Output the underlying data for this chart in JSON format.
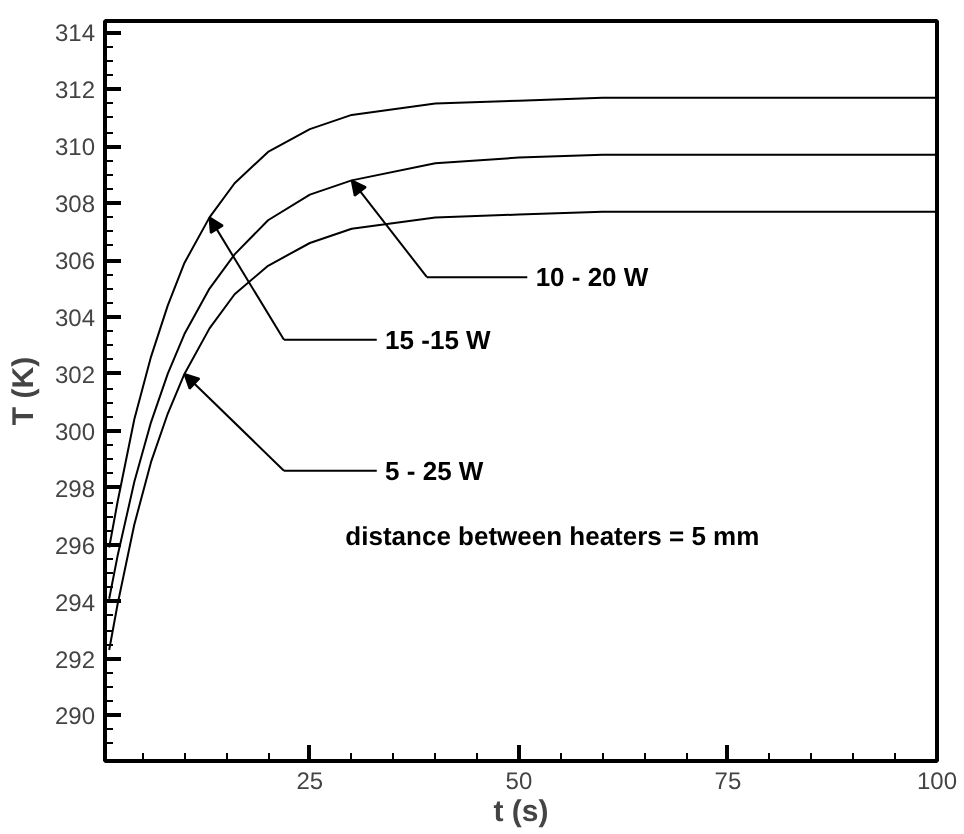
{
  "chart_data": {
    "type": "line",
    "xlabel": "t (s)",
    "ylabel": "T (K)",
    "x": [
      1,
      2,
      4,
      6,
      8,
      10,
      13,
      16,
      20,
      25,
      30,
      40,
      50,
      60,
      75,
      100
    ],
    "series": [
      {
        "name": "15 -15 W",
        "color": "#000000",
        "values": [
          295.9,
          297.5,
          300.4,
          302.6,
          304.4,
          305.9,
          307.5,
          308.7,
          309.8,
          310.6,
          311.1,
          311.5,
          311.6,
          311.7,
          311.7,
          311.7
        ]
      },
      {
        "name": "10 - 20 W",
        "color": "#000000",
        "values": [
          294.1,
          295.6,
          298.2,
          300.3,
          302.0,
          303.4,
          305.0,
          306.2,
          307.4,
          308.3,
          308.8,
          309.4,
          309.6,
          309.7,
          309.7,
          309.7
        ]
      },
      {
        "name": "5 - 25 W",
        "color": "#000000",
        "values": [
          292.3,
          293.9,
          296.7,
          298.9,
          300.6,
          302.0,
          303.6,
          304.8,
          305.8,
          306.6,
          307.1,
          307.5,
          307.6,
          307.7,
          307.7,
          307.7
        ]
      }
    ],
    "xlim": [
      0.5,
      100
    ],
    "ylim": [
      288.4,
      314.4
    ],
    "xticks": [
      25,
      50,
      75,
      100
    ],
    "yticks": [
      290,
      292,
      294,
      296,
      298,
      300,
      302,
      304,
      306,
      308,
      310,
      312,
      314
    ],
    "annotations": [
      "distance between heaters = 5 mm"
    ],
    "grid": false,
    "legend": "center",
    "marker": "none",
    "line_style": "solid"
  }
}
